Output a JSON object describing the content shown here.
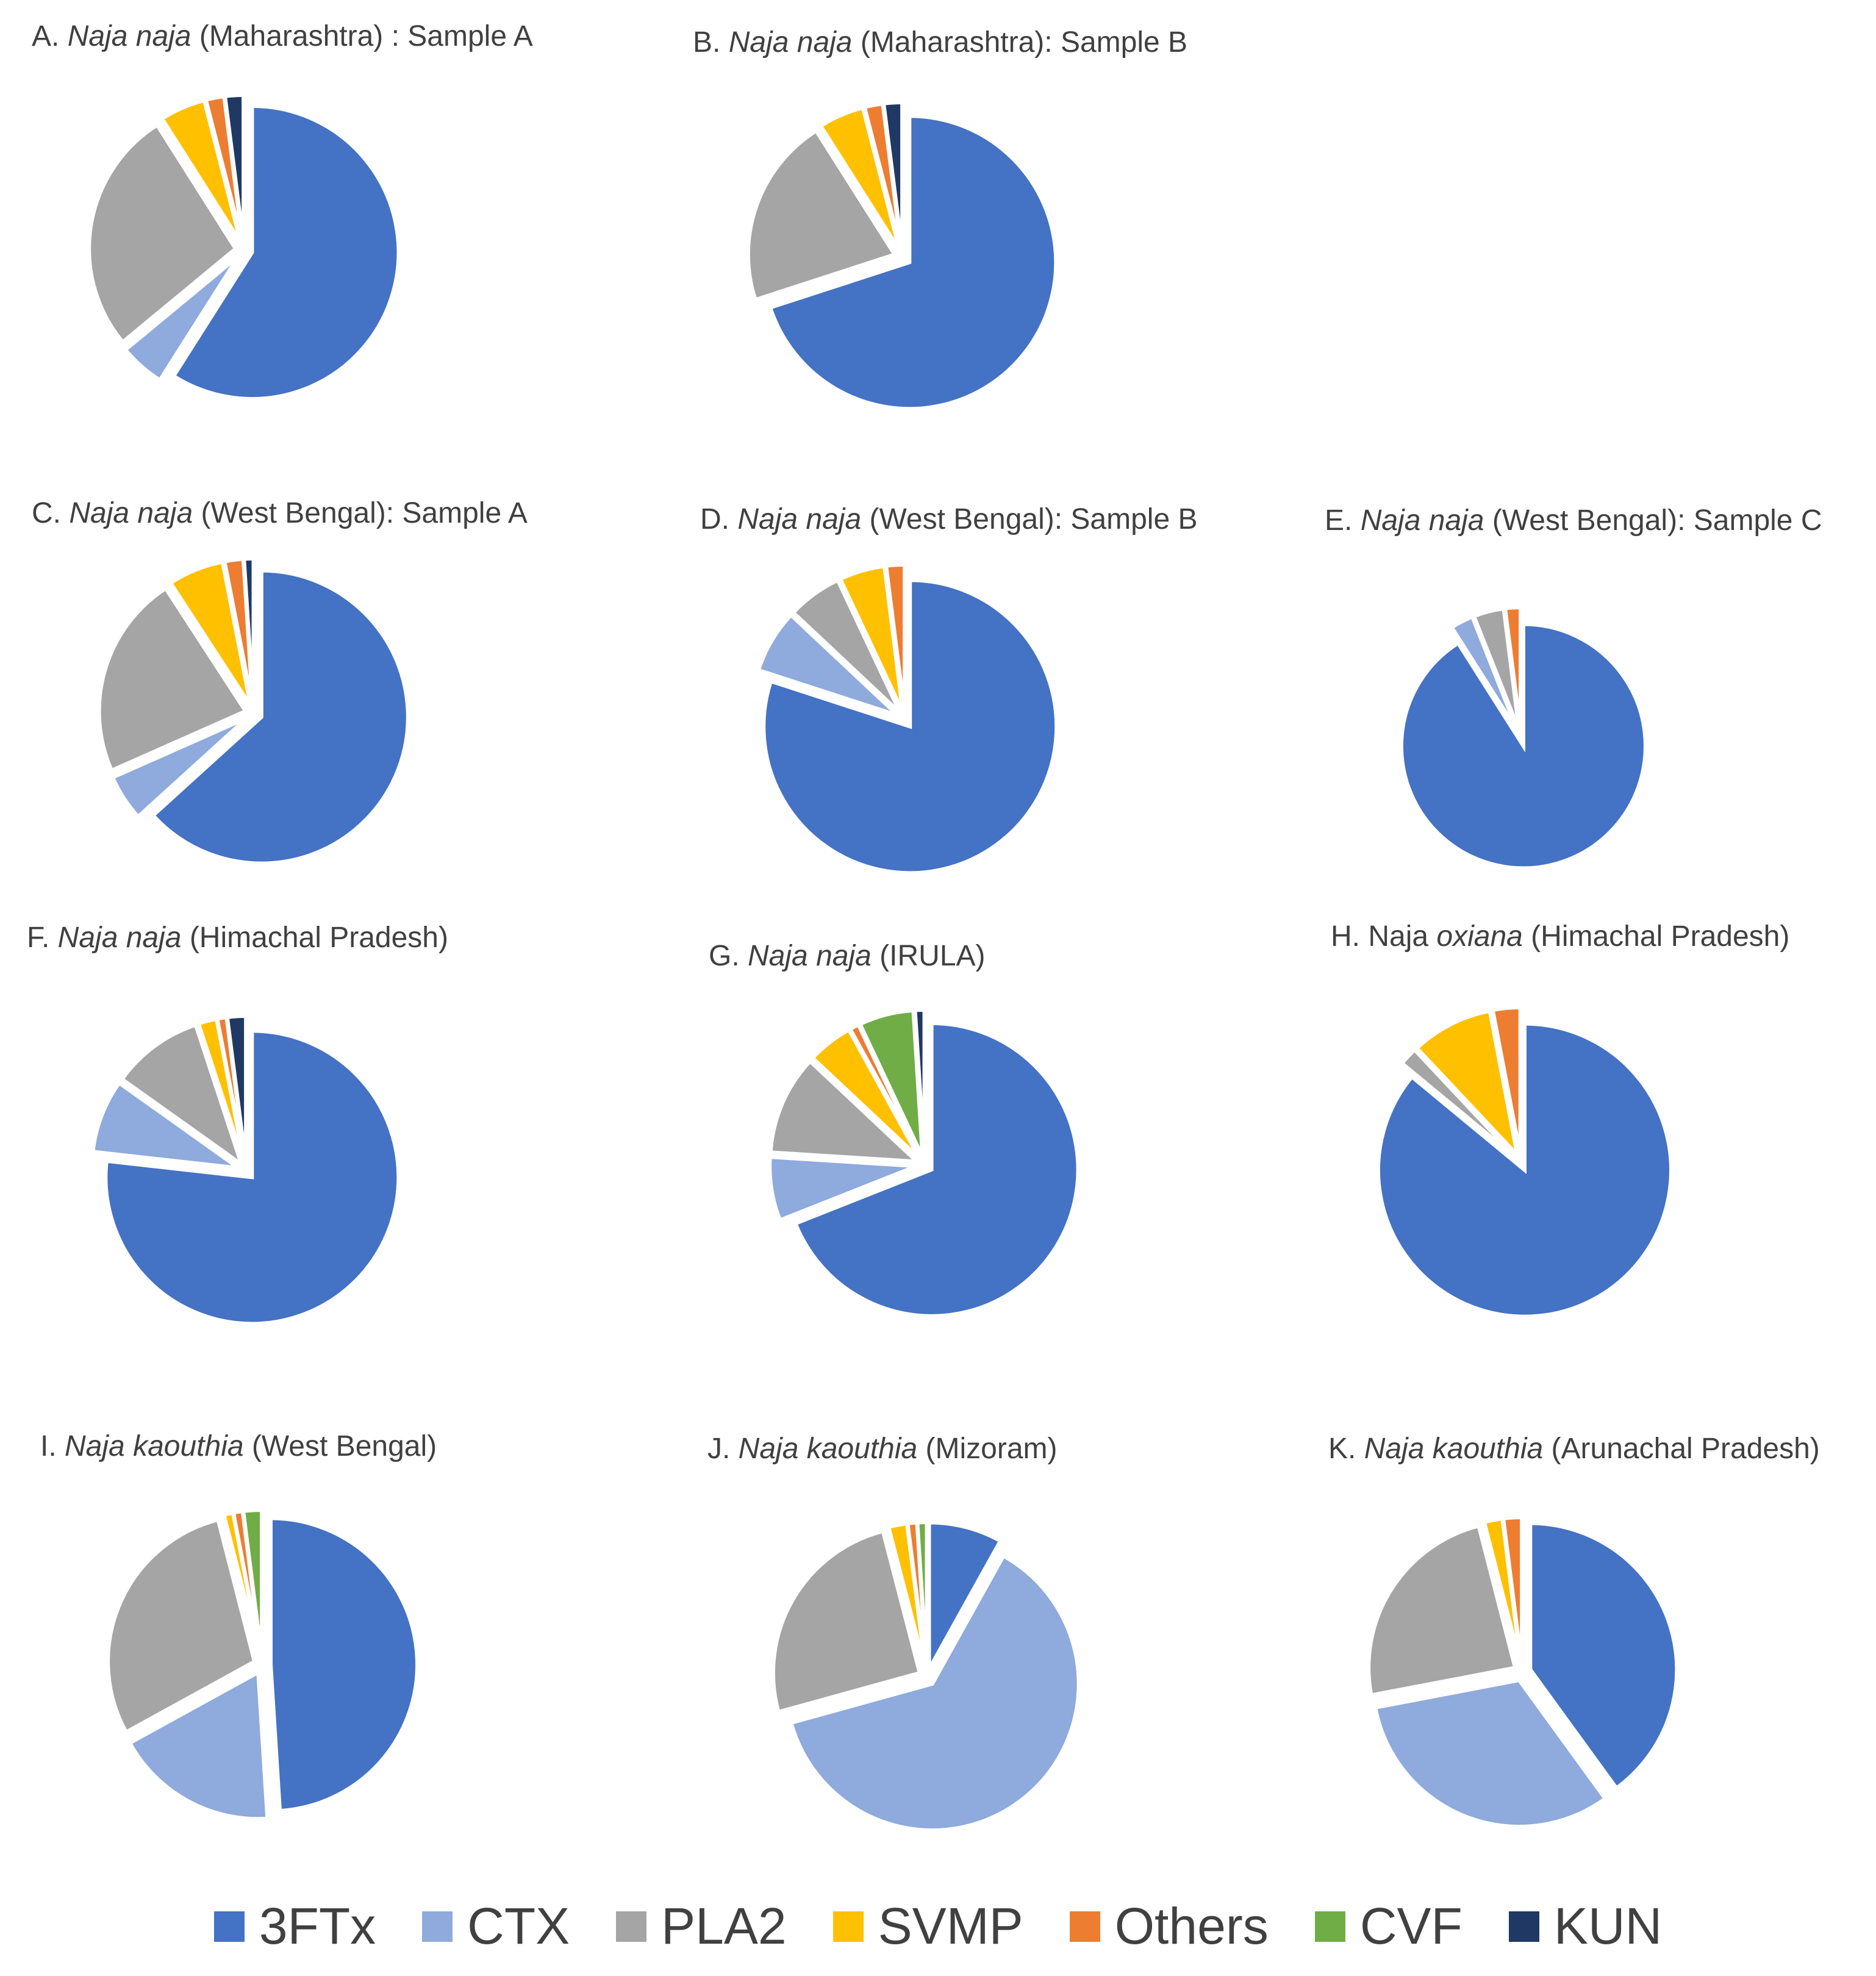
{
  "colors": {
    "3FTx": "#4472c4",
    "CTX": "#8faadc",
    "PLA2": "#a5a5a5",
    "SVMP": "#ffc000",
    "Others": "#ed7d31",
    "CVF": "#70ad47",
    "KUN": "#203864"
  },
  "legend": [
    "3FTx",
    "CTX",
    "PLA2",
    "SVMP",
    "Others",
    "CVF",
    "KUN"
  ],
  "chart_data": [
    {
      "type": "pie",
      "title": {
        "prefix": "A. ",
        "species": "Naja naja",
        "suffix": " (Maharashtra) : Sample A"
      },
      "categories": [
        "3FTx",
        "CTX",
        "PLA2",
        "SVMP",
        "Others",
        "CVF",
        "KUN"
      ],
      "values": [
        59,
        5,
        27,
        5,
        2,
        0,
        2
      ]
    },
    {
      "type": "pie",
      "title": {
        "prefix": "B. ",
        "species": "Naja naja",
        "suffix": " (Maharashtra): Sample B"
      },
      "categories": [
        "3FTx",
        "CTX",
        "PLA2",
        "SVMP",
        "Others",
        "CVF",
        "KUN"
      ],
      "values": [
        70,
        0,
        21,
        5,
        2,
        0,
        2
      ]
    },
    {
      "type": "pie",
      "title": {
        "prefix": "C. ",
        "species": "Naja naja",
        "suffix": " (West Bengal): Sample A"
      },
      "categories": [
        "3FTx",
        "CTX",
        "PLA2",
        "SVMP",
        "Others",
        "CVF",
        "KUN"
      ],
      "values": [
        62,
        5,
        22,
        6,
        2,
        0,
        1
      ]
    },
    {
      "type": "pie",
      "title": {
        "prefix": "D. ",
        "species": "Naja naja",
        "suffix": " (West Bengal): Sample B"
      },
      "categories": [
        "3FTx",
        "CTX",
        "PLA2",
        "SVMP",
        "Others",
        "CVF",
        "KUN"
      ],
      "values": [
        80,
        7,
        6,
        5,
        2,
        0,
        0
      ]
    },
    {
      "type": "pie",
      "title": {
        "prefix": "E. ",
        "species": "Naja naja",
        "suffix": " (West Bengal): Sample C"
      },
      "categories": [
        "3FTx",
        "CTX",
        "PLA2",
        "SVMP",
        "Others",
        "CVF",
        "KUN"
      ],
      "values": [
        91,
        3,
        4,
        0,
        2,
        0,
        0
      ]
    },
    {
      "type": "pie",
      "title": {
        "prefix": "F. ",
        "species": "Naja naja",
        "suffix": " (Himachal Pradesh)"
      },
      "categories": [
        "3FTx",
        "CTX",
        "PLA2",
        "SVMP",
        "Others",
        "CVF",
        "KUN"
      ],
      "values": [
        76,
        8,
        10,
        2,
        1,
        0,
        2
      ]
    },
    {
      "type": "pie",
      "title": {
        "prefix": "G.  ",
        "species": "Naja naja",
        "suffix": " (IRULA)"
      },
      "categories": [
        "3FTx",
        "CTX",
        "PLA2",
        "SVMP",
        "Others",
        "CVF",
        "KUN"
      ],
      "values": [
        69,
        7,
        11,
        5,
        1,
        6,
        1
      ]
    },
    {
      "type": "pie",
      "title": {
        "prefix": "H. Naja ",
        "species": "oxiana",
        "suffix": " (Himachal Pradesh)"
      },
      "categories": [
        "3FTx",
        "CTX",
        "PLA2",
        "SVMP",
        "Others",
        "CVF",
        "KUN"
      ],
      "values": [
        86,
        0,
        2,
        9,
        3,
        0,
        0
      ]
    },
    {
      "type": "pie",
      "title": {
        "prefix": "I. ",
        "species": "Naja kaouthia",
        "suffix": " (West Bengal)"
      },
      "categories": [
        "3FTx",
        "CTX",
        "PLA2",
        "SVMP",
        "Others",
        "CVF",
        "KUN"
      ],
      "values": [
        49,
        18,
        29,
        1,
        1,
        2,
        0
      ]
    },
    {
      "type": "pie",
      "title": {
        "prefix": "J. ",
        "species": "Naja kaouthia",
        "suffix": " (Mizoram)"
      },
      "categories": [
        "3FTx",
        "CTX",
        "PLA2",
        "SVMP",
        "Others",
        "CVF",
        "KUN"
      ],
      "values": [
        8,
        62,
        25,
        2,
        1,
        1,
        0
      ]
    },
    {
      "type": "pie",
      "title": {
        "prefix": "K. ",
        "species": "Naja kaouthia",
        "suffix": " (Arunachal Pradesh)"
      },
      "categories": [
        "3FTx",
        "CTX",
        "PLA2",
        "SVMP",
        "Others",
        "CVF",
        "KUN"
      ],
      "values": [
        40,
        32,
        24,
        2,
        2,
        0,
        0
      ]
    }
  ]
}
